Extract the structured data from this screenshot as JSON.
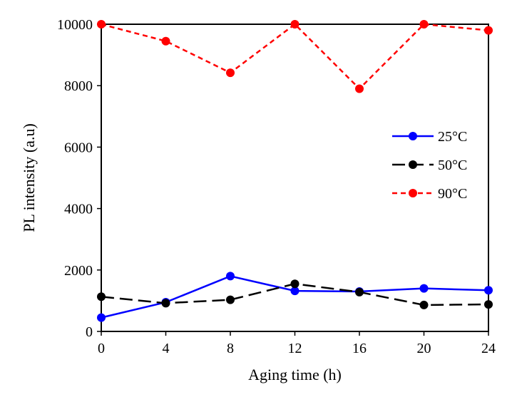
{
  "chart_data": {
    "type": "line",
    "title": "",
    "xlabel": "Aging time (h)",
    "ylabel": "PL intensity (a.u)",
    "x": [
      0,
      4,
      8,
      12,
      16,
      20,
      24
    ],
    "xlim": [
      0,
      24
    ],
    "ylim": [
      0,
      10000
    ],
    "xticks": [
      "0",
      "4",
      "8",
      "12",
      "16",
      "20",
      "24"
    ],
    "yticks": [
      "0",
      "2000",
      "4000",
      "6000",
      "8000",
      "10000"
    ],
    "grid": false,
    "legend_position": "right",
    "series": [
      {
        "name": "25°C",
        "color": "#0000ff",
        "line_style": "solid",
        "values": [
          450,
          950,
          1800,
          1320,
          1300,
          1400,
          1340
        ]
      },
      {
        "name": "50°C",
        "color": "#000000",
        "line_style": "long-dash",
        "values": [
          1130,
          920,
          1030,
          1550,
          1280,
          860,
          880
        ]
      },
      {
        "name": "90°C",
        "color": "#ff0000",
        "line_style": "short-dash",
        "values": [
          10000,
          9450,
          8420,
          10000,
          7900,
          10000,
          9800
        ]
      }
    ]
  }
}
